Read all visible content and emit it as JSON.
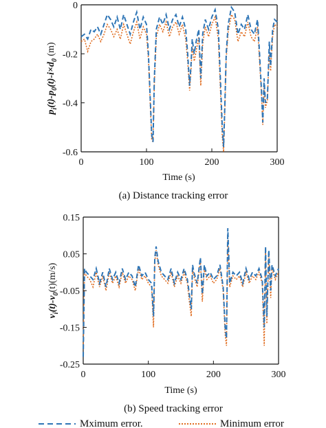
{
  "colors": {
    "max": "#2e75b6",
    "min": "#e06c1f",
    "axis": "#111111"
  },
  "legend": {
    "max_label": "Mximum error.",
    "min_label": "Minimum error"
  },
  "chart_data": [
    {
      "type": "line",
      "caption": "(a) Distance tracking error",
      "xlabel": "Time (s)",
      "ylabel": "p_i(t)-p_0(t)-i×d_0 (m)",
      "ylabel_parts": [
        "p",
        "i",
        "(t)-p",
        "0",
        "(t)-i×d",
        "0",
        " (m)"
      ],
      "xlim": [
        0,
        300
      ],
      "ylim": [
        -0.6,
        0
      ],
      "xticks": [
        0,
        100,
        200,
        300
      ],
      "yticks": [
        0,
        -0.2,
        -0.4,
        -0.6
      ],
      "xtick_labels": [
        "0",
        "100",
        "200",
        "300"
      ],
      "ytick_labels": [
        "0",
        "-0.2",
        "-0.4",
        "-0.6"
      ],
      "series": [
        {
          "name": "Mximum error.",
          "x": [
            0,
            5,
            10,
            15,
            20,
            25,
            30,
            35,
            40,
            45,
            50,
            55,
            60,
            65,
            70,
            75,
            80,
            85,
            90,
            95,
            100,
            103,
            106,
            108,
            110,
            112,
            115,
            120,
            125,
            130,
            135,
            140,
            145,
            150,
            155,
            160,
            163,
            166,
            168,
            170,
            173,
            176,
            180,
            183,
            186,
            190,
            195,
            200,
            205,
            210,
            213,
            216,
            218,
            220,
            222,
            225,
            230,
            235,
            240,
            245,
            250,
            255,
            260,
            265,
            270,
            273,
            276,
            278,
            280,
            282,
            285,
            288,
            290,
            293,
            296,
            300
          ],
          "y": [
            -0.13,
            -0.12,
            -0.14,
            -0.1,
            -0.11,
            -0.09,
            -0.12,
            -0.08,
            -0.04,
            -0.06,
            -0.09,
            -0.05,
            -0.1,
            -0.04,
            -0.08,
            -0.12,
            -0.07,
            -0.03,
            -0.1,
            -0.05,
            -0.08,
            -0.2,
            -0.4,
            -0.53,
            -0.56,
            -0.3,
            -0.1,
            -0.05,
            -0.08,
            -0.04,
            -0.1,
            -0.06,
            -0.04,
            -0.09,
            -0.05,
            -0.1,
            -0.2,
            -0.33,
            -0.25,
            -0.14,
            -0.2,
            -0.15,
            -0.1,
            -0.3,
            -0.12,
            -0.06,
            -0.1,
            -0.05,
            -0.02,
            -0.1,
            -0.3,
            -0.5,
            -0.58,
            -0.4,
            -0.2,
            -0.08,
            -0.01,
            -0.03,
            -0.12,
            -0.08,
            -0.1,
            -0.04,
            -0.1,
            -0.12,
            -0.06,
            -0.2,
            -0.35,
            -0.48,
            -0.3,
            -0.4,
            -0.38,
            -0.15,
            -0.25,
            -0.1,
            -0.06,
            -0.07
          ]
        },
        {
          "name": "Minimum error",
          "x": [
            0,
            5,
            10,
            15,
            20,
            25,
            30,
            35,
            40,
            45,
            50,
            55,
            60,
            65,
            70,
            75,
            80,
            85,
            90,
            95,
            100,
            103,
            106,
            108,
            110,
            112,
            115,
            120,
            125,
            130,
            135,
            140,
            145,
            150,
            155,
            160,
            163,
            166,
            168,
            170,
            173,
            176,
            180,
            183,
            186,
            190,
            195,
            200,
            205,
            210,
            213,
            216,
            218,
            220,
            222,
            225,
            230,
            235,
            240,
            245,
            250,
            255,
            260,
            265,
            270,
            273,
            276,
            278,
            280,
            282,
            285,
            288,
            290,
            293,
            296,
            300
          ],
          "y": [
            -0.15,
            -0.14,
            -0.19,
            -0.15,
            -0.14,
            -0.12,
            -0.15,
            -0.12,
            -0.08,
            -0.1,
            -0.13,
            -0.1,
            -0.14,
            -0.08,
            -0.12,
            -0.16,
            -0.11,
            -0.07,
            -0.14,
            -0.09,
            -0.12,
            -0.22,
            -0.42,
            -0.55,
            -0.56,
            -0.32,
            -0.13,
            -0.08,
            -0.11,
            -0.07,
            -0.13,
            -0.09,
            -0.07,
            -0.12,
            -0.08,
            -0.14,
            -0.23,
            -0.35,
            -0.27,
            -0.17,
            -0.23,
            -0.19,
            -0.13,
            -0.33,
            -0.16,
            -0.09,
            -0.13,
            -0.08,
            -0.05,
            -0.14,
            -0.34,
            -0.54,
            -0.6,
            -0.42,
            -0.22,
            -0.11,
            -0.04,
            -0.06,
            -0.15,
            -0.11,
            -0.13,
            -0.07,
            -0.13,
            -0.15,
            -0.09,
            -0.23,
            -0.37,
            -0.49,
            -0.32,
            -0.42,
            -0.39,
            -0.18,
            -0.27,
            -0.13,
            -0.08,
            -0.09
          ]
        }
      ]
    },
    {
      "type": "line",
      "caption": "(b) Speed tracking error",
      "xlabel": "Time (s)",
      "ylabel": "v_i(t)-v_0(t)(m/s)",
      "ylabel_parts": [
        "v",
        "i",
        "(t)-v",
        "0",
        "(t)(m/s)",
        "",
        ""
      ],
      "xlim": [
        0,
        300
      ],
      "ylim": [
        -0.25,
        0.15
      ],
      "xticks": [
        0,
        100,
        200,
        300
      ],
      "yticks": [
        0.15,
        0.05,
        -0.05,
        -0.15,
        -0.25
      ],
      "xtick_labels": [
        "0",
        "100",
        "200",
        "300"
      ],
      "ytick_labels": [
        "0.15",
        "0.05",
        "-0.05",
        "-0.15",
        "-0.25"
      ],
      "series": [
        {
          "name": "Mximum error.",
          "x": [
            0,
            2,
            5,
            10,
            15,
            20,
            25,
            30,
            35,
            40,
            45,
            50,
            55,
            60,
            65,
            70,
            75,
            80,
            85,
            90,
            95,
            100,
            105,
            108,
            110,
            112,
            115,
            120,
            125,
            130,
            135,
            140,
            145,
            150,
            155,
            160,
            163,
            166,
            168,
            170,
            175,
            180,
            183,
            186,
            190,
            195,
            200,
            205,
            210,
            215,
            218,
            220,
            222,
            225,
            230,
            235,
            240,
            245,
            250,
            255,
            260,
            265,
            270,
            275,
            278,
            280,
            282,
            285,
            288,
            290,
            295,
            300
          ],
          "y": [
            -0.23,
            0.01,
            0.0,
            -0.01,
            -0.02,
            0.01,
            -0.03,
            0.0,
            -0.04,
            0.01,
            -0.02,
            0.0,
            -0.03,
            0.01,
            -0.02,
            0.0,
            -0.01,
            -0.04,
            0.02,
            -0.01,
            0.0,
            -0.02,
            -0.03,
            -0.12,
            0.04,
            0.07,
            0.03,
            0.0,
            -0.01,
            -0.02,
            0.01,
            -0.03,
            0.0,
            -0.02,
            0.01,
            -0.02,
            -0.06,
            -0.1,
            0.02,
            0.0,
            -0.03,
            0.04,
            -0.06,
            0.02,
            -0.01,
            0.0,
            -0.02,
            -0.01,
            0.02,
            -0.04,
            -0.15,
            -0.18,
            0.12,
            -0.03,
            0.0,
            -0.01,
            0.0,
            -0.03,
            0.01,
            -0.02,
            0.0,
            -0.01,
            0.01,
            -0.02,
            -0.15,
            0.07,
            -0.12,
            0.06,
            -0.05,
            0.02,
            -0.01,
            0.01
          ]
        },
        {
          "name": "Minimum error",
          "x": [
            0,
            2,
            5,
            10,
            15,
            20,
            25,
            30,
            35,
            40,
            45,
            50,
            55,
            60,
            65,
            70,
            75,
            80,
            85,
            90,
            95,
            100,
            105,
            108,
            110,
            112,
            115,
            120,
            125,
            130,
            135,
            140,
            145,
            150,
            155,
            160,
            163,
            166,
            168,
            170,
            175,
            180,
            183,
            186,
            190,
            195,
            200,
            205,
            210,
            215,
            218,
            220,
            222,
            225,
            230,
            235,
            240,
            245,
            250,
            255,
            260,
            265,
            270,
            275,
            278,
            280,
            282,
            285,
            288,
            290,
            295,
            300
          ],
          "y": [
            -0.21,
            0.0,
            -0.01,
            -0.02,
            -0.04,
            0.0,
            -0.04,
            -0.01,
            -0.05,
            0.0,
            -0.03,
            -0.01,
            -0.04,
            0.0,
            -0.03,
            -0.01,
            -0.02,
            -0.05,
            0.01,
            -0.02,
            -0.01,
            -0.03,
            -0.04,
            -0.15,
            0.03,
            0.06,
            0.02,
            -0.01,
            -0.02,
            -0.03,
            0.0,
            -0.04,
            -0.01,
            -0.03,
            0.0,
            -0.03,
            -0.08,
            -0.12,
            0.01,
            -0.01,
            -0.04,
            0.03,
            -0.08,
            0.01,
            -0.02,
            -0.01,
            -0.03,
            -0.02,
            0.01,
            -0.05,
            -0.17,
            -0.2,
            0.1,
            -0.04,
            -0.01,
            -0.02,
            -0.01,
            -0.04,
            0.0,
            -0.03,
            -0.01,
            -0.02,
            0.0,
            -0.03,
            -0.2,
            0.06,
            -0.14,
            0.05,
            -0.07,
            0.01,
            -0.02,
            0.0
          ]
        }
      ]
    }
  ]
}
